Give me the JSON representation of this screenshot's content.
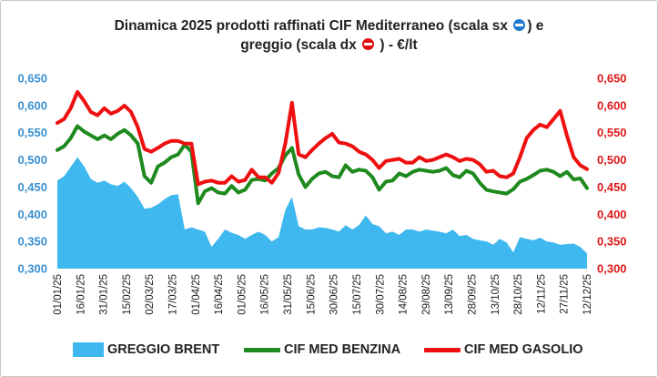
{
  "title": {
    "line1": "Dinamica 2025 prodotti raffinati CIF Mediterraneo (scala sx",
    "line1_end": ") e",
    "line2": "greggio (scala dx",
    "line2_end": ") - €/lt"
  },
  "icons": {
    "left_scale": "blue-circle-minus-icon",
    "right_scale": "red-circle-minus-icon"
  },
  "colors": {
    "brent": "#3fb8ef",
    "benzina": "#1e8a1e",
    "gasolio": "#ee1010",
    "left_axis": "#3a8fd0",
    "right_axis": "#e01818"
  },
  "chart_data": {
    "type": "line",
    "x_labels": [
      "01/01/25",
      "16/01/25",
      "31/01/25",
      "15/02/25",
      "02/03/25",
      "17/03/25",
      "01/04/25",
      "16/04/25",
      "01/05/25",
      "16/05/25",
      "31/05/25",
      "15/06/25",
      "30/06/25",
      "15/07/25",
      "30/07/25",
      "14/08/25",
      "29/08/25",
      "13/09/25",
      "28/09/25",
      "13/10/25",
      "28/10/25",
      "12/11/25",
      "27/11/25",
      "12/12/25"
    ],
    "y_left_ticks": [
      "0,300",
      "0,350",
      "0,400",
      "0,450",
      "0,500",
      "0,550",
      "0,600",
      "0,650"
    ],
    "y_right_ticks": [
      "0,300",
      "0,350",
      "0,400",
      "0,450",
      "0,500",
      "0,550",
      "0,600",
      "0,650"
    ],
    "ylim_left": [
      0.3,
      0.65
    ],
    "ylim_right": [
      0.3,
      0.65
    ],
    "legend_position": "bottom",
    "grid": false,
    "series": [
      {
        "name": "GREGGIO BRENT",
        "kind": "area",
        "axis": "right",
        "values": [
          0.462,
          0.47,
          0.487,
          0.505,
          0.488,
          0.465,
          0.458,
          0.462,
          0.455,
          0.452,
          0.46,
          0.448,
          0.432,
          0.41,
          0.412,
          0.418,
          0.428,
          0.435,
          0.437,
          0.372,
          0.376,
          0.372,
          0.368,
          0.34,
          0.355,
          0.372,
          0.366,
          0.362,
          0.355,
          0.362,
          0.368,
          0.362,
          0.35,
          0.358,
          0.408,
          0.432,
          0.378,
          0.372,
          0.372,
          0.376,
          0.375,
          0.372,
          0.368,
          0.38,
          0.372,
          0.38,
          0.398,
          0.382,
          0.378,
          0.365,
          0.368,
          0.362,
          0.372,
          0.372,
          0.368,
          0.372,
          0.37,
          0.368,
          0.365,
          0.372,
          0.36,
          0.362,
          0.355,
          0.352,
          0.35,
          0.344,
          0.355,
          0.348,
          0.33,
          0.358,
          0.355,
          0.352,
          0.357,
          0.35,
          0.348,
          0.344,
          0.345,
          0.346,
          0.34,
          0.328
        ]
      },
      {
        "name": "CIF MED BENZINA",
        "kind": "line",
        "axis": "left",
        "values": [
          0.518,
          0.525,
          0.54,
          0.562,
          0.552,
          0.545,
          0.538,
          0.545,
          0.538,
          0.548,
          0.555,
          0.545,
          0.53,
          0.47,
          0.458,
          0.488,
          0.495,
          0.505,
          0.51,
          0.528,
          0.515,
          0.42,
          0.442,
          0.448,
          0.44,
          0.438,
          0.452,
          0.44,
          0.445,
          0.463,
          0.465,
          0.462,
          0.475,
          0.485,
          0.508,
          0.522,
          0.473,
          0.45,
          0.465,
          0.475,
          0.478,
          0.47,
          0.468,
          0.49,
          0.478,
          0.482,
          0.48,
          0.468,
          0.445,
          0.46,
          0.462,
          0.475,
          0.47,
          0.478,
          0.482,
          0.48,
          0.478,
          0.48,
          0.485,
          0.472,
          0.468,
          0.48,
          0.475,
          0.458,
          0.445,
          0.442,
          0.44,
          0.438,
          0.446,
          0.46,
          0.465,
          0.472,
          0.48,
          0.482,
          0.478,
          0.47,
          0.478,
          0.464,
          0.466,
          0.448
        ]
      },
      {
        "name": "CIF MED GASOLIO",
        "kind": "line",
        "axis": "right",
        "values": [
          0.568,
          0.575,
          0.595,
          0.625,
          0.608,
          0.588,
          0.582,
          0.595,
          0.585,
          0.59,
          0.6,
          0.588,
          0.56,
          0.52,
          0.515,
          0.522,
          0.53,
          0.535,
          0.535,
          0.53,
          0.53,
          0.455,
          0.46,
          0.462,
          0.458,
          0.458,
          0.47,
          0.46,
          0.463,
          0.482,
          0.468,
          0.468,
          0.458,
          0.476,
          0.53,
          0.605,
          0.51,
          0.505,
          0.518,
          0.53,
          0.54,
          0.548,
          0.532,
          0.53,
          0.525,
          0.515,
          0.51,
          0.5,
          0.485,
          0.498,
          0.5,
          0.502,
          0.495,
          0.495,
          0.505,
          0.498,
          0.5,
          0.505,
          0.51,
          0.505,
          0.498,
          0.502,
          0.5,
          0.492,
          0.478,
          0.48,
          0.47,
          0.468,
          0.475,
          0.505,
          0.54,
          0.555,
          0.565,
          0.56,
          0.575,
          0.59,
          0.545,
          0.505,
          0.49,
          0.483
        ]
      }
    ]
  }
}
